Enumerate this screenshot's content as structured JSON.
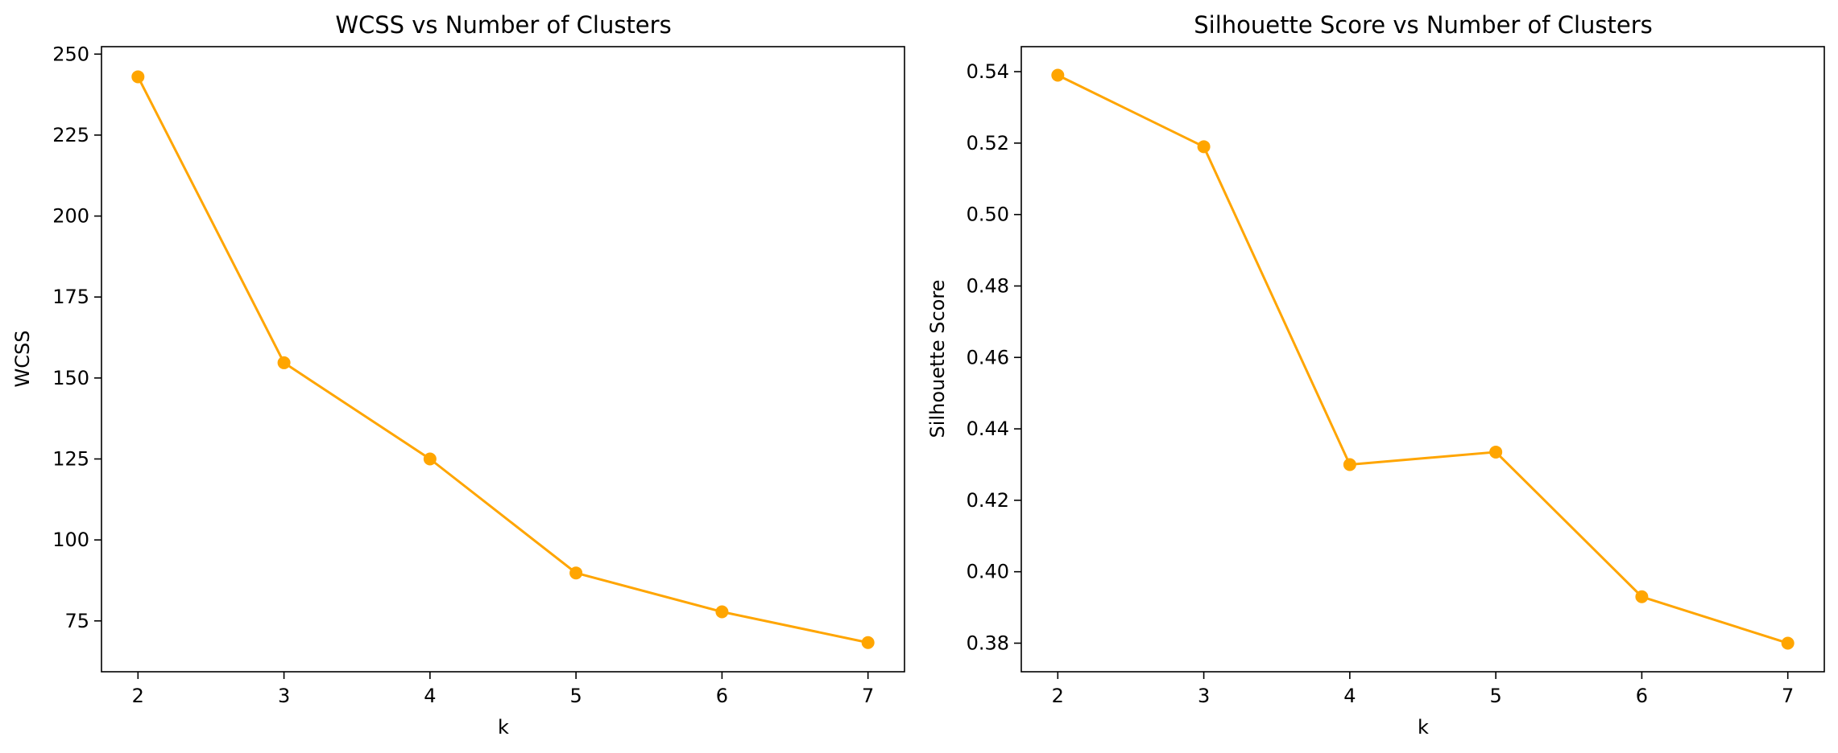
{
  "chart_data": [
    {
      "type": "line",
      "title": "WCSS vs Number of Clusters",
      "xlabel": "k",
      "ylabel": "WCSS",
      "x": [
        2,
        3,
        4,
        5,
        6,
        7
      ],
      "xticks": [
        "2",
        "3",
        "4",
        "5",
        "6",
        "7"
      ],
      "xlim": [
        1.75,
        7.25
      ],
      "yticks": [
        "75",
        "100",
        "125",
        "150",
        "175",
        "200",
        "225",
        "250"
      ],
      "ylim": [
        59.3,
        252.3
      ],
      "grid": false,
      "series": [
        {
          "values": [
            243,
            154.7,
            125,
            89.8,
            77.8,
            68.3
          ],
          "color": "#FFA500",
          "marker": "circle"
        }
      ]
    },
    {
      "type": "line",
      "title": "Silhouette Score vs Number of Clusters",
      "xlabel": "k",
      "ylabel": "Silhouette Score",
      "x": [
        2,
        3,
        4,
        5,
        6,
        7
      ],
      "xticks": [
        "2",
        "3",
        "4",
        "5",
        "6",
        "7"
      ],
      "xlim": [
        1.75,
        7.25
      ],
      "yticks": [
        "0.38",
        "0.40",
        "0.42",
        "0.44",
        "0.46",
        "0.48",
        "0.50",
        "0.52",
        "0.54"
      ],
      "ylim": [
        0.372,
        0.547
      ],
      "grid": false,
      "series": [
        {
          "values": [
            0.539,
            0.519,
            0.43,
            0.4335,
            0.393,
            0.38
          ],
          "color": "#FFA500",
          "marker": "circle"
        }
      ]
    }
  ]
}
